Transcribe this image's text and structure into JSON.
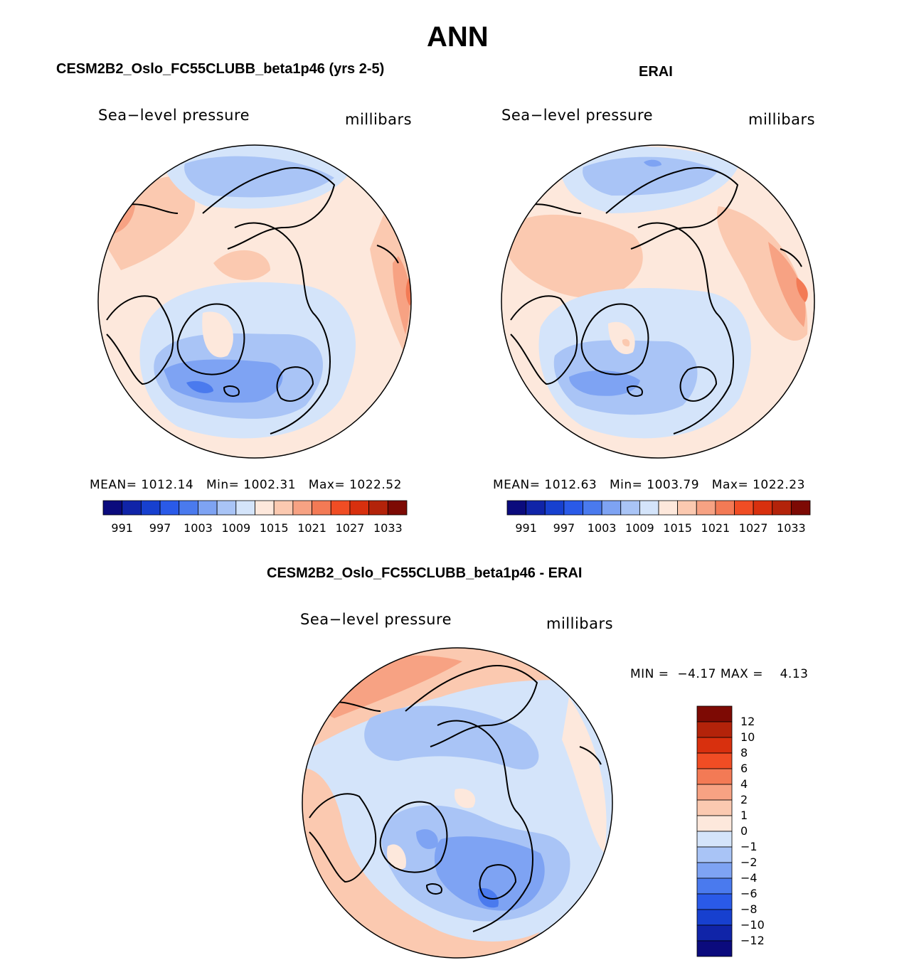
{
  "figure": {
    "title": "ANN",
    "colors": {
      "land_outline": "#000000",
      "full_palette": [
        "#0b0b7d",
        "#1024a8",
        "#1740cf",
        "#2a5ae8",
        "#4a7aee",
        "#7ea3f3",
        "#a9c4f6",
        "#d4e4fa",
        "#fde8dc",
        "#fbc9b0",
        "#f7a283",
        "#f37a55",
        "#f04d24",
        "#d8300e",
        "#b3230a",
        "#7d0a04"
      ]
    }
  },
  "chart_data": [
    {
      "type": "heatmap",
      "projection": "north-polar-stereographic",
      "title": "CESM2B2_Oslo_FC55CLUBB_beta1p46 (yrs 2-5)",
      "variable_label": "Sea−level pressure",
      "units_label": "millibars",
      "stats": {
        "mean_label": "MEAN=",
        "mean": "1012.14",
        "min_label": "Min=",
        "min": "1002.31",
        "max_label": "Max=",
        "max": "1022.52"
      },
      "colorbar": {
        "orientation": "horizontal",
        "levels": [
          991,
          994,
          997,
          1000,
          1003,
          1006,
          1009,
          1012,
          1015,
          1018,
          1021,
          1024,
          1027,
          1030,
          1033
        ],
        "tick_labels": [
          "991",
          "997",
          "1003",
          "1009",
          "1015",
          "1021",
          "1027",
          "1033"
        ]
      }
    },
    {
      "type": "heatmap",
      "projection": "north-polar-stereographic",
      "title": "ERAI",
      "variable_label": "Sea−level pressure",
      "units_label": "millibars",
      "stats": {
        "mean_label": "MEAN=",
        "mean": "1012.63",
        "min_label": "Min=",
        "min": "1003.79",
        "max_label": "Max=",
        "max": "1022.23"
      },
      "colorbar": {
        "orientation": "horizontal",
        "levels": [
          991,
          994,
          997,
          1000,
          1003,
          1006,
          1009,
          1012,
          1015,
          1018,
          1021,
          1024,
          1027,
          1030,
          1033
        ],
        "tick_labels": [
          "991",
          "997",
          "1003",
          "1009",
          "1015",
          "1021",
          "1027",
          "1033"
        ]
      }
    },
    {
      "type": "heatmap",
      "projection": "north-polar-stereographic",
      "title": "CESM2B2_Oslo_FC55CLUBB_beta1p46 - ERAI",
      "variable_label": "Sea−level pressure",
      "units_label": "millibars",
      "stats": {
        "min_label": "MIN =",
        "min": "−4.17",
        "max_label": "MAX =",
        "max": "4.13"
      },
      "colorbar": {
        "orientation": "vertical",
        "levels": [
          12,
          10,
          8,
          6,
          4,
          2,
          1,
          0,
          -1,
          -2,
          -4,
          -6,
          -8,
          -10,
          -12
        ],
        "tick_labels": [
          "12",
          "10",
          "8",
          "6",
          "4",
          "2",
          "1",
          "0",
          "−1",
          "−2",
          "−4",
          "−6",
          "−8",
          "−10",
          "−12"
        ],
        "colors": [
          "#7d0a04",
          "#b3230a",
          "#d8300e",
          "#f04d24",
          "#f37a55",
          "#f7a283",
          "#fbc9b0",
          "#fde8dc",
          "#d4e4fa",
          "#a9c4f6",
          "#7ea3f3",
          "#4a7aee",
          "#2a5ae8",
          "#1740cf",
          "#1024a8",
          "#0b0b7d"
        ]
      }
    }
  ]
}
